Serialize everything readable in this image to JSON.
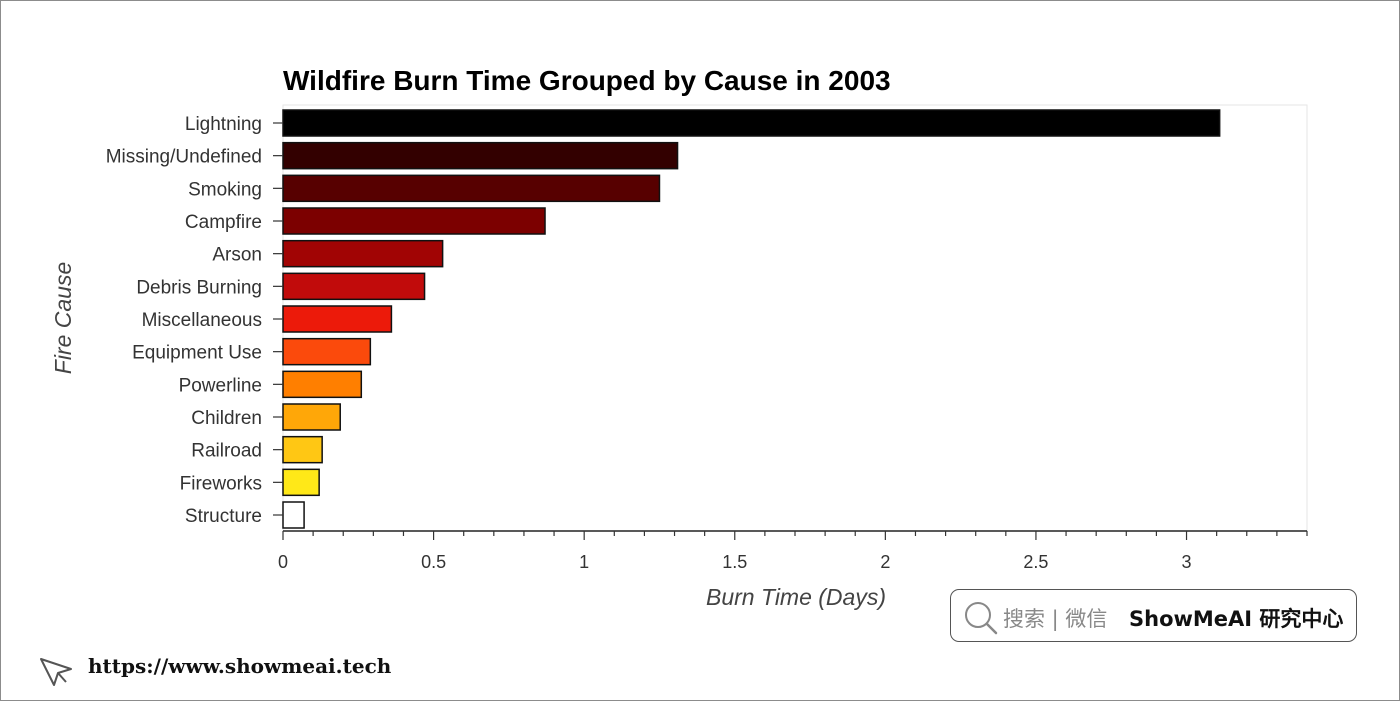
{
  "chart_data": {
    "type": "bar",
    "orientation": "horizontal",
    "title": "Wildfire Burn Time Grouped by Cause in 2003",
    "xlabel": "Burn Time (Days)",
    "ylabel": "Fire Cause",
    "xlim": [
      0,
      3.4
    ],
    "xticks": [
      "0",
      "0.5",
      "1",
      "1.5",
      "2",
      "2.5",
      "3"
    ],
    "grid": false,
    "categories": [
      "Lightning",
      "Missing/Undefined",
      "Smoking",
      "Campfire",
      "Arson",
      "Debris Burning",
      "Miscellaneous",
      "Equipment Use",
      "Powerline",
      "Children",
      "Railroad",
      "Fireworks",
      "Structure"
    ],
    "values": [
      3.11,
      1.31,
      1.25,
      0.87,
      0.53,
      0.47,
      0.36,
      0.29,
      0.26,
      0.19,
      0.13,
      0.12,
      0.07
    ],
    "colors": [
      "#000000",
      "#330000",
      "#570000",
      "#7c0000",
      "#a10404",
      "#c10b0b",
      "#ec1a0a",
      "#fb4a0c",
      "#ff7f00",
      "#ffa708",
      "#ffc714",
      "#ffe818",
      "#ffffff"
    ]
  },
  "watermark": {
    "search_label": "搜索 | 微信",
    "brand": "ShowMeAI 研究中心",
    "url": "https://www.showmeai.tech"
  }
}
